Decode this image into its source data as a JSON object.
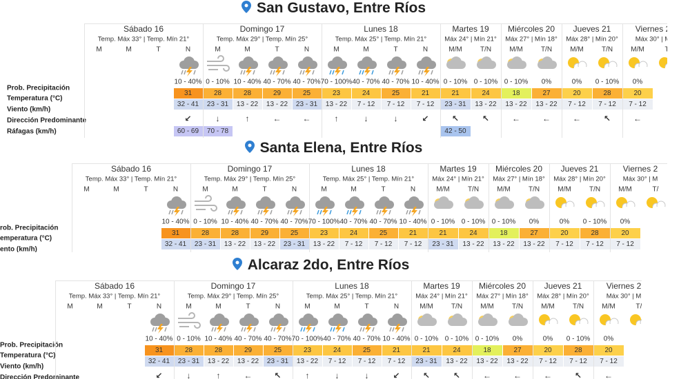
{
  "panels": [
    {
      "title": "San Gustavo, Entre Ríos",
      "row_labels": [
        "Prob. Precipitación",
        "Temperatura (°C)",
        "Viento (km/h)",
        "Dirección Predominante",
        "Ráfagas (km/h)"
      ],
      "days": [
        {
          "name": "Sábado 16",
          "temps": "Temp. Máx 33° | Temp. Mín 21°",
          "periods": [
            "M",
            "M",
            "T",
            "N"
          ],
          "icons": [
            null,
            null,
            null,
            "storm"
          ],
          "precip": [
            null,
            null,
            null,
            "10 - 40%"
          ],
          "temp": [
            null,
            null,
            null,
            31
          ],
          "wind": [
            null,
            null,
            null,
            "32 - 41"
          ],
          "dir": [
            null,
            null,
            null,
            "↙"
          ],
          "gust": [
            null,
            null,
            null,
            "60 - 69"
          ]
        },
        {
          "name": "Domingo 17",
          "temps": "Temp. Máx 29° | Temp. Mín 25°",
          "periods": [
            "M",
            "M",
            "T",
            "N"
          ],
          "icons": [
            "wind",
            "storm",
            "storm",
            "storm"
          ],
          "precip": [
            "0 - 10%",
            "10 - 40%",
            "40 - 70%",
            "40 - 70%"
          ],
          "temp": [
            28,
            28,
            29,
            25
          ],
          "wind": [
            "23 - 31",
            "13 - 22",
            "13 - 22",
            "23 - 31"
          ],
          "dir": [
            "↓",
            "↑",
            "←",
            "←"
          ],
          "gust": [
            "70 - 78",
            null,
            null,
            null
          ]
        },
        {
          "name": "Lunes 18",
          "temps": "Temp. Máx 25° | Temp. Mín 21°",
          "periods": [
            "M",
            "M",
            "T",
            "N"
          ],
          "icons": [
            "rain_storm",
            "rain_storm",
            "storm",
            "storm"
          ],
          "precip": [
            "70 - 100%",
            "40 - 70%",
            "40 - 70%",
            "10 - 40%"
          ],
          "temp": [
            23,
            24,
            25,
            21
          ],
          "wind": [
            "13 - 22",
            "7 - 12",
            "7 - 12",
            "7 - 12"
          ],
          "dir": [
            "↑",
            "↓",
            "↓",
            "↙"
          ],
          "gust": [
            null,
            null,
            null,
            null
          ]
        },
        {
          "name": "Martes 19",
          "temps": "Máx 24° | Mín 21°",
          "periods": [
            "M/M",
            "T/N"
          ],
          "icons": [
            "partly",
            "partly"
          ],
          "precip": [
            "0 - 10%",
            "0 - 10%"
          ],
          "temp": [
            21,
            24
          ],
          "wind": [
            "23 - 31",
            "13 - 22"
          ],
          "dir": [
            "↖",
            "↖"
          ],
          "gust": [
            "42 - 50",
            null
          ]
        },
        {
          "name": "Miércoles 20",
          "temps": "Máx 27° | Mín 18°",
          "periods": [
            "M/M",
            "T/N"
          ],
          "icons": [
            "partly",
            "partly"
          ],
          "precip": [
            "0 - 10%",
            "0%"
          ],
          "temp": [
            18,
            27
          ],
          "wind": [
            "13 - 22",
            "13 - 22"
          ],
          "dir": [
            "←",
            "←"
          ],
          "gust": [
            null,
            null
          ]
        },
        {
          "name": "Jueves 21",
          "temps": "Máx 28° | Mín 20°",
          "periods": [
            "M/M",
            "T/N"
          ],
          "icons": [
            "sun",
            "sun"
          ],
          "precip": [
            "0%",
            "0 - 10%"
          ],
          "temp": [
            20,
            28
          ],
          "wind": [
            "7 - 12",
            "7 - 12"
          ],
          "dir": [
            "←",
            "↖"
          ],
          "gust": [
            null,
            null
          ]
        },
        {
          "name": "Viernes 2",
          "temps": "Máx 30° | M",
          "periods": [
            "M/M",
            "T/"
          ],
          "icons": [
            "sun",
            "sun"
          ],
          "precip": [
            "0%",
            null
          ],
          "temp": [
            20,
            null
          ],
          "wind": [
            "7 - 12",
            null
          ],
          "dir": [
            "←",
            null
          ],
          "gust": [
            null,
            null
          ]
        }
      ]
    },
    {
      "title": "Santa Elena, Entre Ríos",
      "row_labels": [
        "rob. Precipitación",
        "emperatura (°C)",
        "ento (km/h)"
      ],
      "days": [
        {
          "name": "Sábado 16",
          "temps": "Temp. Máx 33° | Temp. Mín 21°",
          "periods": [
            "M",
            "M",
            "T",
            "N"
          ],
          "icons": [
            null,
            null,
            null,
            "storm"
          ],
          "precip": [
            null,
            null,
            null,
            "10 - 40%"
          ],
          "temp": [
            null,
            null,
            null,
            31
          ],
          "wind": [
            null,
            null,
            null,
            "32 - 41"
          ]
        },
        {
          "name": "Domingo 17",
          "temps": "Temp. Máx 29° | Temp. Mín 25°",
          "periods": [
            "M",
            "M",
            "T",
            "N"
          ],
          "icons": [
            "wind",
            "storm",
            "storm",
            "storm"
          ],
          "precip": [
            "0 - 10%",
            "10 - 40%",
            "40 - 70%",
            "40 - 70%"
          ],
          "temp": [
            28,
            28,
            29,
            25
          ],
          "wind": [
            "23 - 31",
            "13 - 22",
            "13 - 22",
            "23 - 31"
          ]
        },
        {
          "name": "Lunes 18",
          "temps": "Temp. Máx 25° | Temp. Mín 21°",
          "periods": [
            "M",
            "M",
            "T",
            "N"
          ],
          "icons": [
            "rain_storm",
            "rain_storm",
            "storm",
            "storm"
          ],
          "precip": [
            "70 - 100%",
            "40 - 70%",
            "40 - 70%",
            "10 - 40%"
          ],
          "temp": [
            23,
            24,
            25,
            21
          ],
          "wind": [
            "13 - 22",
            "7 - 12",
            "7 - 12",
            "7 - 12"
          ]
        },
        {
          "name": "Martes 19",
          "temps": "Máx 24° | Mín 21°",
          "periods": [
            "M/M",
            "T/N"
          ],
          "icons": [
            "partly",
            "partly"
          ],
          "precip": [
            "0 - 10%",
            "0 - 10%"
          ],
          "temp": [
            21,
            24
          ],
          "wind": [
            "23 - 31",
            "13 - 22"
          ]
        },
        {
          "name": "Miércoles 20",
          "temps": "Máx 27° | Mín 18°",
          "periods": [
            "M/M",
            "T/N"
          ],
          "icons": [
            "partly",
            "partly"
          ],
          "precip": [
            "0 - 10%",
            "0%"
          ],
          "temp": [
            18,
            27
          ],
          "wind": [
            "13 - 22",
            "13 - 22"
          ]
        },
        {
          "name": "Jueves 21",
          "temps": "Máx 28° | Mín 20°",
          "periods": [
            "M/M",
            "T/N"
          ],
          "icons": [
            "sun",
            "sun"
          ],
          "precip": [
            "0%",
            "0 - 10%"
          ],
          "temp": [
            20,
            28
          ],
          "wind": [
            "7 - 12",
            "7 - 12"
          ]
        },
        {
          "name": "Viernes 2",
          "temps": "Máx 30° | M",
          "periods": [
            "M/M",
            "T/"
          ],
          "icons": [
            "sun",
            "sun"
          ],
          "precip": [
            "0%",
            null
          ],
          "temp": [
            20,
            null
          ],
          "wind": [
            "7 - 12",
            null
          ]
        }
      ]
    },
    {
      "title": "Alcaraz 2do, Entre Ríos",
      "row_labels": [
        "Prob. Precipitación",
        "Temperatura (°C)",
        "Viento (km/h)",
        "Dirección Predominante"
      ],
      "days": [
        {
          "name": "Sábado 16",
          "temps": "Temp. Máx 33° | Temp. Mín 21°",
          "periods": [
            "M",
            "M",
            "T",
            "N"
          ],
          "icons": [
            null,
            null,
            null,
            "storm"
          ],
          "precip": [
            null,
            null,
            null,
            "10 - 40%"
          ],
          "temp": [
            null,
            null,
            null,
            31
          ],
          "wind": [
            null,
            null,
            null,
            "32 - 41"
          ],
          "dir": [
            null,
            null,
            null,
            "↙"
          ]
        },
        {
          "name": "Domingo 17",
          "temps": "Temp. Máx 29° | Temp. Mín 25°",
          "periods": [
            "M",
            "M",
            "T",
            "N"
          ],
          "icons": [
            "wind",
            "storm",
            "storm",
            "storm"
          ],
          "precip": [
            "0 - 10%",
            "10 - 40%",
            "40 - 70%",
            "40 - 70%"
          ],
          "temp": [
            28,
            28,
            29,
            25
          ],
          "wind": [
            "23 - 31",
            "13 - 22",
            "13 - 22",
            "23 - 31"
          ],
          "dir": [
            "↓",
            "↑",
            "←",
            "↖"
          ]
        },
        {
          "name": "Lunes 18",
          "temps": "Temp. Máx 25° | Temp. Mín 21°",
          "periods": [
            "M",
            "M",
            "T",
            "N"
          ],
          "icons": [
            "rain_storm",
            "rain_storm",
            "storm",
            "storm"
          ],
          "precip": [
            "70 - 100%",
            "40 - 70%",
            "40 - 70%",
            "10 - 40%"
          ],
          "temp": [
            23,
            24,
            25,
            21
          ],
          "wind": [
            "13 - 22",
            "7 - 12",
            "7 - 12",
            "7 - 12"
          ],
          "dir": [
            "↑",
            "↓",
            "↓",
            "↙"
          ]
        },
        {
          "name": "Martes 19",
          "temps": "Máx 24° | Mín 21°",
          "periods": [
            "M/M",
            "T/N"
          ],
          "icons": [
            "partly",
            "partly"
          ],
          "precip": [
            "0 - 10%",
            "0 - 10%"
          ],
          "temp": [
            21,
            24
          ],
          "wind": [
            "23 - 31",
            "13 - 22"
          ],
          "dir": [
            "↖",
            "↖"
          ]
        },
        {
          "name": "Miércoles 20",
          "temps": "Máx 27° | Mín 18°",
          "periods": [
            "M/M",
            "T/N"
          ],
          "icons": [
            "partly",
            "partly"
          ],
          "precip": [
            "0 - 10%",
            "0%"
          ],
          "temp": [
            18,
            27
          ],
          "wind": [
            "13 - 22",
            "13 - 22"
          ],
          "dir": [
            "←",
            "←"
          ]
        },
        {
          "name": "Jueves 21",
          "temps": "Máx 28° | Mín 20°",
          "periods": [
            "M/M",
            "T/N"
          ],
          "icons": [
            "sun",
            "sun"
          ],
          "precip": [
            "0%",
            "0 - 10%"
          ],
          "temp": [
            20,
            28
          ],
          "wind": [
            "7 - 12",
            "7 - 12"
          ],
          "dir": [
            "←",
            "↖"
          ]
        },
        {
          "name": "Viernes 2",
          "temps": "Máx 30° | M",
          "periods": [
            "M/M",
            "T/"
          ],
          "icons": [
            "sun",
            "sun"
          ],
          "precip": [
            "0%",
            null
          ],
          "temp": [
            20,
            null
          ],
          "wind": [
            "7 - 12",
            null
          ],
          "dir": [
            "←",
            null
          ]
        }
      ]
    }
  ]
}
